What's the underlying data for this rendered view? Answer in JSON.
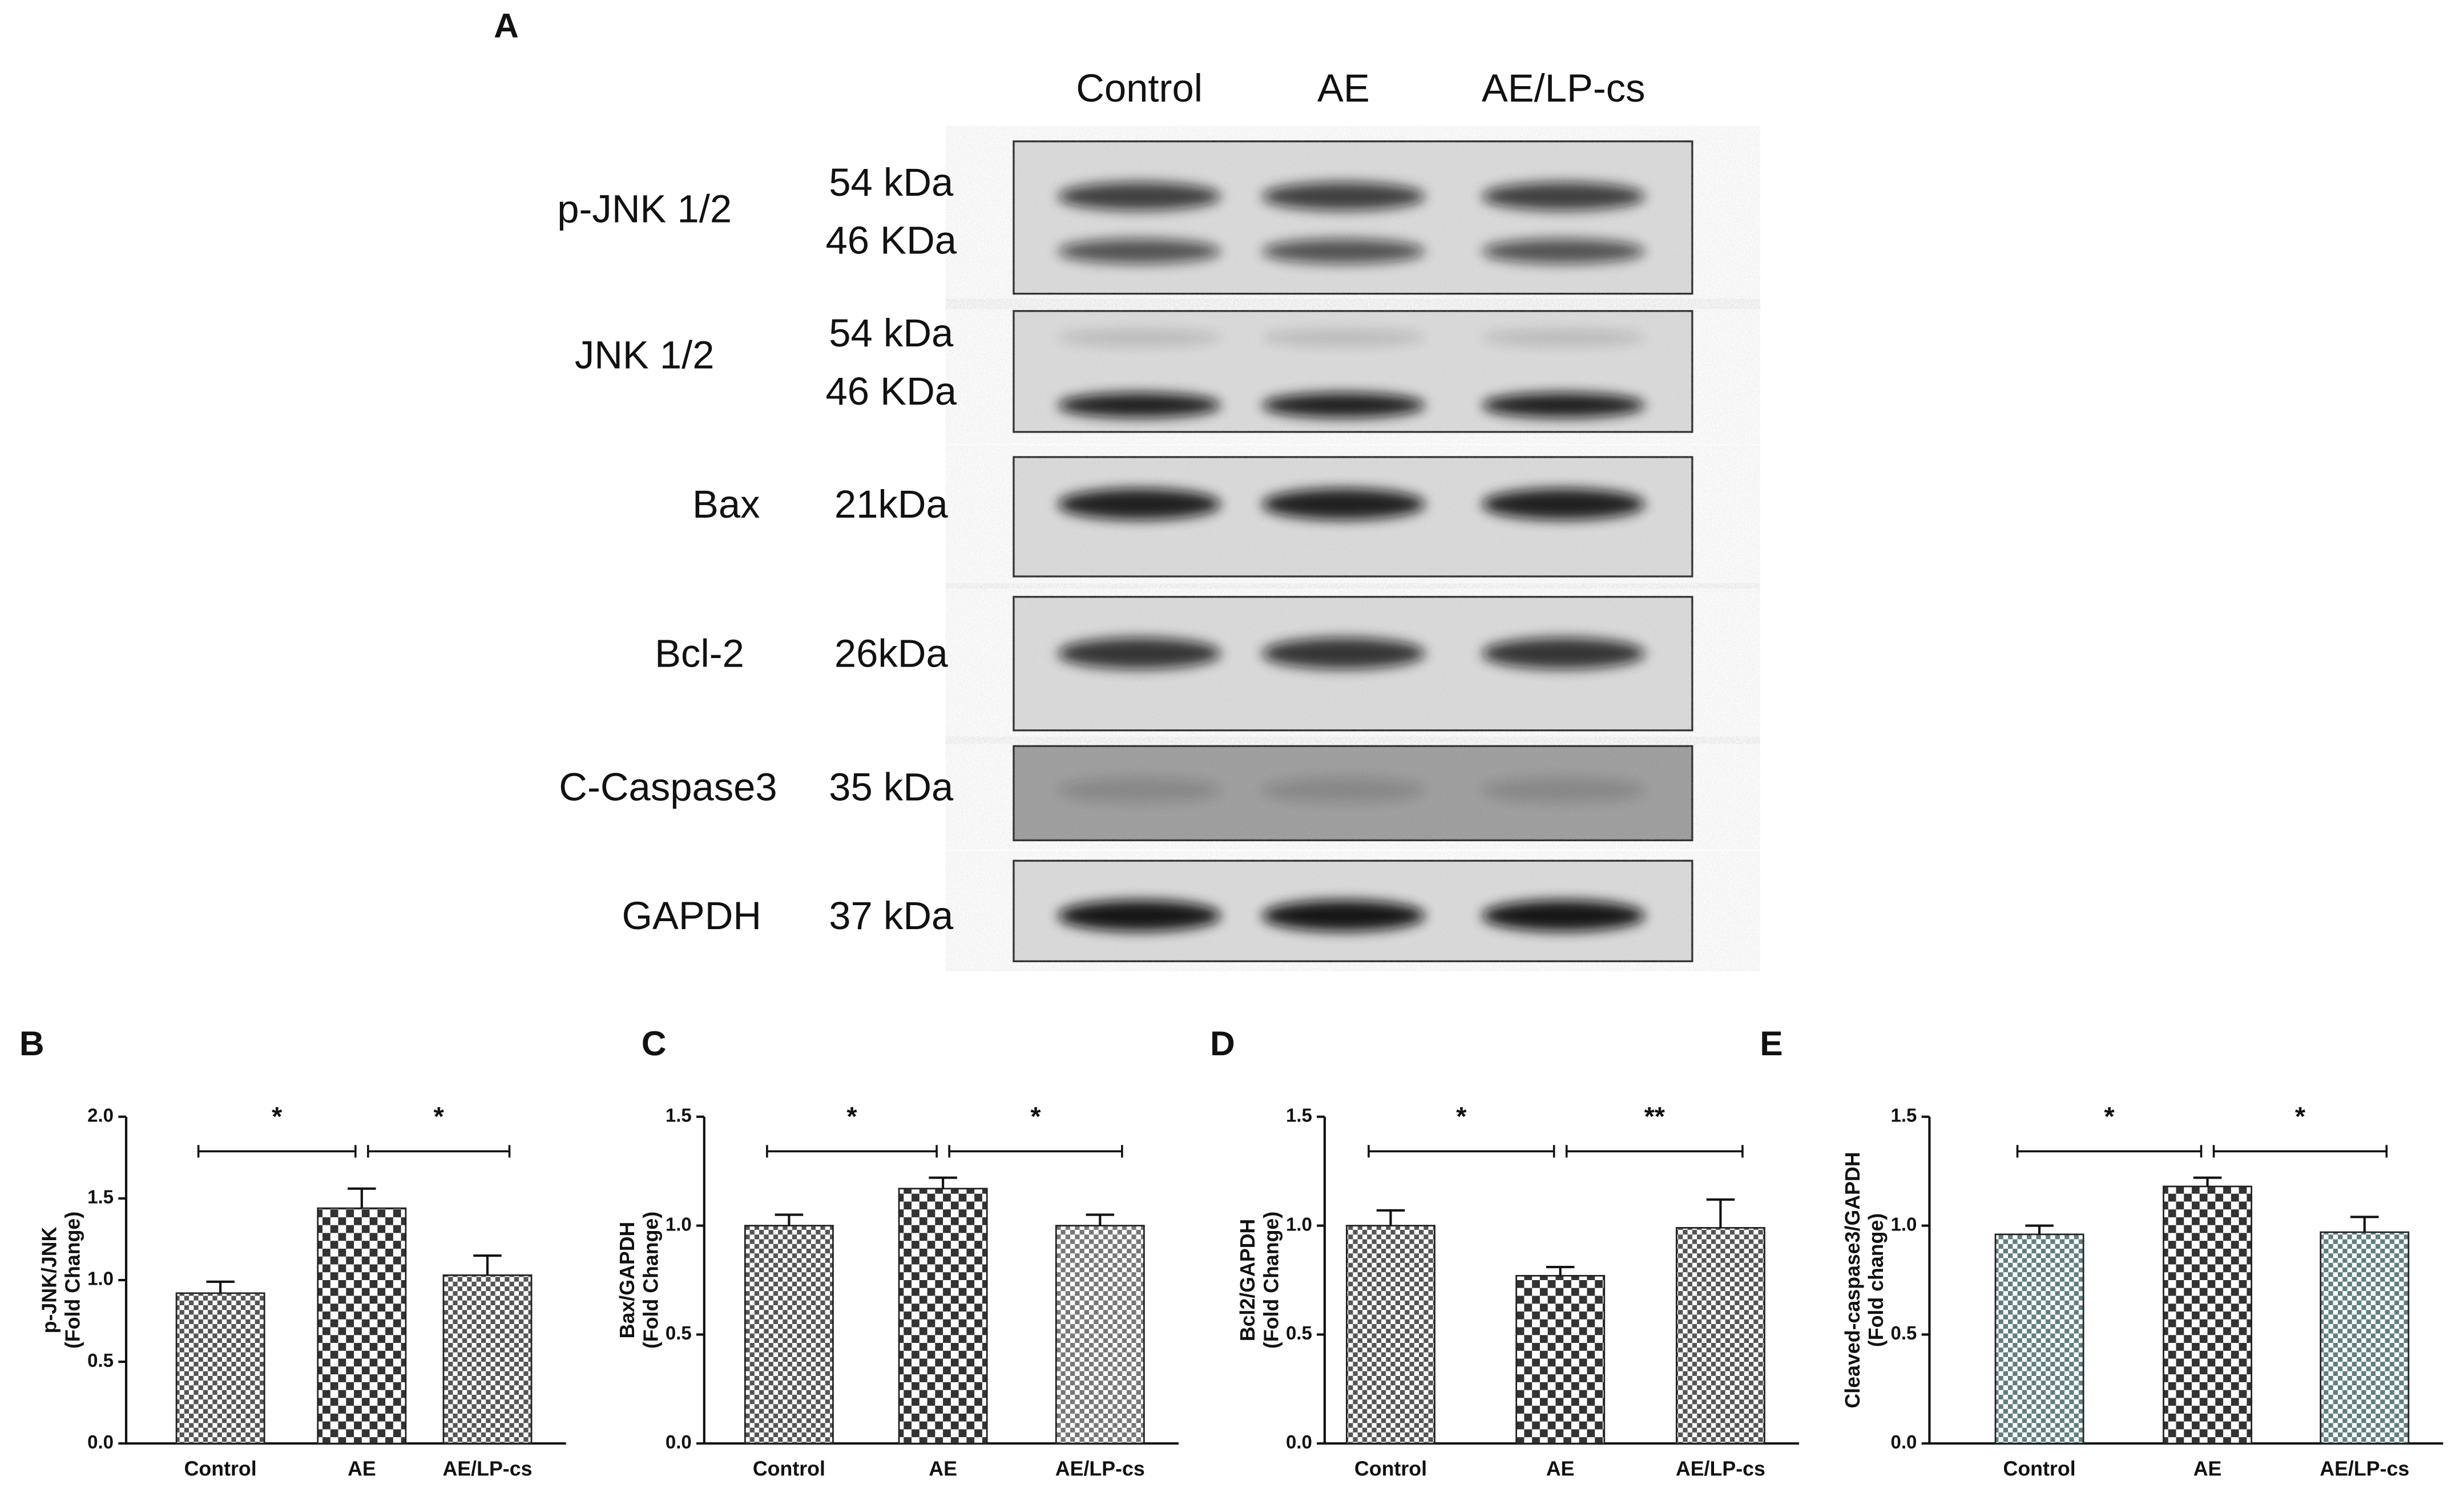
{
  "figure": {
    "panel_label": "A",
    "lanes": [
      "Control",
      "AE",
      "AE/LP-cs"
    ],
    "rows": [
      {
        "protein": "p-JNK 1/2",
        "sizes": [
          "54 kDa",
          "46 KDa"
        ]
      },
      {
        "protein": "JNK 1/2",
        "sizes": [
          "54 kDa",
          "46 KDa"
        ]
      },
      {
        "protein": "Bax",
        "sizes": [
          "21kDa"
        ]
      },
      {
        "protein": "Bcl-2",
        "sizes": [
          "26kDa"
        ]
      },
      {
        "protein": "C-Caspase3",
        "sizes": [
          "35 kDa"
        ]
      },
      {
        "protein": "GAPDH",
        "sizes": [
          "37 kDa"
        ]
      }
    ]
  },
  "chart_data": [
    {
      "type": "bar",
      "panel_label": "B",
      "ylabel": [
        "p-JNK/JNK",
        "(Fold Change)"
      ],
      "categories": [
        "Control",
        "AE",
        "AE/LP-cs"
      ],
      "values": [
        0.92,
        1.44,
        1.03
      ],
      "errors": [
        0.07,
        0.12,
        0.12
      ],
      "colors": [
        "#555555",
        "#333333",
        "#555555"
      ],
      "ylim": [
        0,
        2
      ],
      "yticks": [
        {
          "value": 0,
          "label": "0.0"
        },
        0.5,
        {
          "value": 1,
          "label": "1.0"
        },
        1.5,
        {
          "value": 2,
          "label": "2.0"
        }
      ],
      "significance": [
        "*",
        "*"
      ]
    },
    {
      "type": "bar",
      "panel_label": "C",
      "ylabel": [
        "Bax/GAPDH",
        "(Fold Change)"
      ],
      "categories": [
        "Control",
        "AE",
        "AE/LP-cs"
      ],
      "values": [
        1.0,
        1.17,
        1.0
      ],
      "errors": [
        0.05,
        0.05,
        0.05
      ],
      "colors": [
        "#555555",
        "#333333",
        "#777777"
      ],
      "ylim": [
        0,
        1.5
      ],
      "yticks": [
        {
          "value": 0,
          "label": "0.0"
        },
        0.5,
        {
          "value": 1,
          "label": "1.0"
        },
        1.5
      ],
      "significance": [
        "*",
        "*"
      ]
    },
    {
      "type": "bar",
      "panel_label": "D",
      "ylabel": [
        "Bcl2/GAPDH",
        "(Fold Change)"
      ],
      "categories": [
        "Control",
        "AE",
        "AE/LP-cs"
      ],
      "values": [
        1.0,
        0.77,
        0.99
      ],
      "errors": [
        0.07,
        0.04,
        0.13
      ],
      "colors": [
        "#555555",
        "#333333",
        "#555555"
      ],
      "ylim": [
        0,
        1.5
      ],
      "yticks": [
        {
          "value": 0,
          "label": "0.0"
        },
        0.5,
        {
          "value": 1,
          "label": "1.0"
        },
        1.5
      ],
      "significance": [
        "*",
        "**"
      ]
    },
    {
      "type": "bar",
      "panel_label": "E",
      "ylabel": [
        "Cleaved-caspase3/GAPDH",
        "(Fold change)"
      ],
      "categories": [
        "Control",
        "AE",
        "AE/LP-cs"
      ],
      "values": [
        0.96,
        1.18,
        0.97
      ],
      "errors": [
        0.04,
        0.04,
        0.07
      ],
      "colors": [
        "#5f7f80",
        "#333333",
        "#5f7f80"
      ],
      "ylim": [
        0,
        1.5
      ],
      "yticks": [
        {
          "value": 0,
          "label": "0.0"
        },
        0.5,
        {
          "value": 1,
          "label": "1.0"
        },
        1.5
      ],
      "significance": [
        "*",
        "*"
      ]
    }
  ]
}
